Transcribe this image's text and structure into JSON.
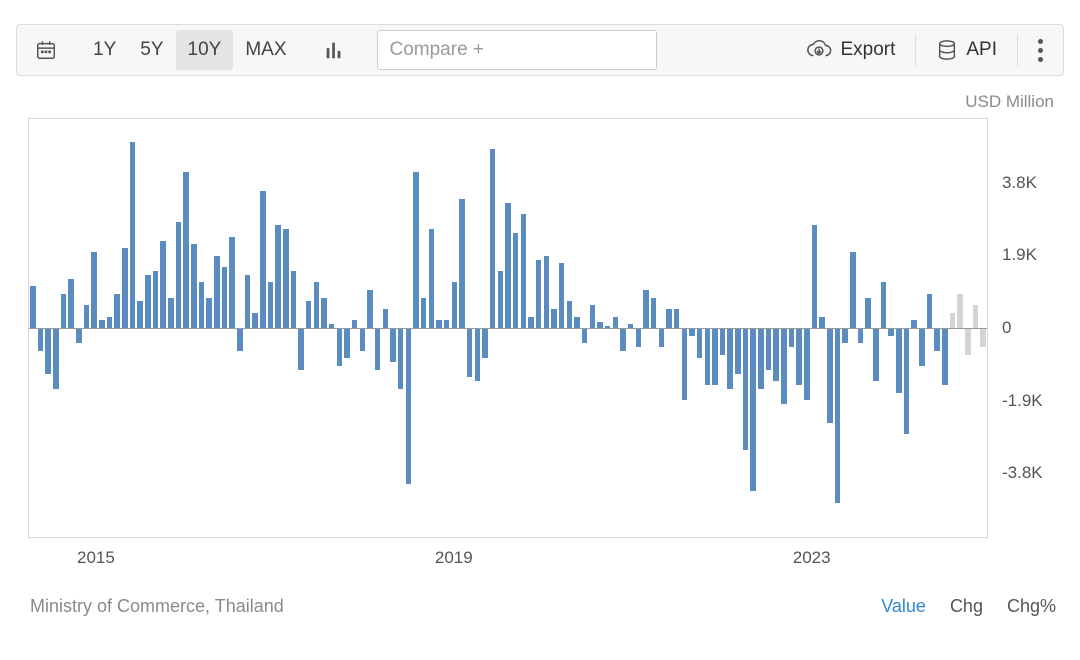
{
  "toolbar": {
    "ranges": [
      {
        "label": "1Y",
        "active": false
      },
      {
        "label": "5Y",
        "active": false
      },
      {
        "label": "10Y",
        "active": true
      },
      {
        "label": "MAX",
        "active": false
      }
    ],
    "compare_placeholder": "Compare +",
    "export_label": "Export",
    "api_label": "API"
  },
  "chart": {
    "type": "bar",
    "unit_label": "USD Million",
    "ylim": [
      -5500,
      5500
    ],
    "yticks": [
      {
        "value": 3800,
        "label": "3.8K"
      },
      {
        "value": 1900,
        "label": "1.9K"
      },
      {
        "value": 0,
        "label": "0"
      },
      {
        "value": -1900,
        "label": "-1.9K"
      },
      {
        "value": -3800,
        "label": "-3.8K"
      }
    ],
    "xticks": [
      {
        "index": 7,
        "label": "2015"
      },
      {
        "index": 55,
        "label": "2019"
      },
      {
        "index": 103,
        "label": "2023"
      }
    ],
    "colors": {
      "bar": "#5b8cbf",
      "bar_forecast": "#d4d4d4",
      "zero_line": "#9a9a9a",
      "plot_border": "#d9d9d9",
      "background": "#ffffff"
    },
    "bar_gap_ratio": 0.28,
    "values": [
      1100,
      -600,
      -1200,
      -1600,
      900,
      1300,
      -400,
      600,
      2000,
      200,
      300,
      900,
      2100,
      4900,
      700,
      1400,
      1500,
      2300,
      800,
      2800,
      4100,
      2200,
      1200,
      800,
      1900,
      1600,
      2400,
      -600,
      1400,
      400,
      3600,
      1200,
      2700,
      2600,
      1500,
      -1100,
      700,
      1200,
      800,
      100,
      -1000,
      -800,
      200,
      -600,
      1000,
      -1100,
      500,
      -900,
      -1600,
      -4100,
      4100,
      800,
      2600,
      200,
      200,
      1200,
      3400,
      -1300,
      -1400,
      -800,
      4700,
      1500,
      3300,
      2500,
      3000,
      300,
      1800,
      1900,
      500,
      1700,
      700,
      300,
      -400,
      600,
      150,
      50,
      300,
      -600,
      100,
      -500,
      1000,
      800,
      -500,
      500,
      500,
      -1900,
      -200,
      -800,
      -1500,
      -1500,
      -700,
      -1600,
      -1200,
      -3200,
      -4300,
      -1600,
      -1100,
      -1400,
      -2000,
      -500,
      -1500,
      -1900,
      2700,
      300,
      -2500,
      -4600,
      -400,
      2000,
      -400,
      800,
      -1400,
      1200,
      -200,
      -1700,
      -2800,
      200,
      -1000,
      900,
      -600,
      -1500
    ],
    "forecast_values": [
      400,
      900,
      -700,
      600,
      -500
    ],
    "n_total": 125
  },
  "footer": {
    "source": "Ministry of Commerce, Thailand",
    "views": [
      {
        "label": "Value",
        "active": true
      },
      {
        "label": "Chg",
        "active": false
      },
      {
        "label": "Chg%",
        "active": false
      }
    ]
  }
}
